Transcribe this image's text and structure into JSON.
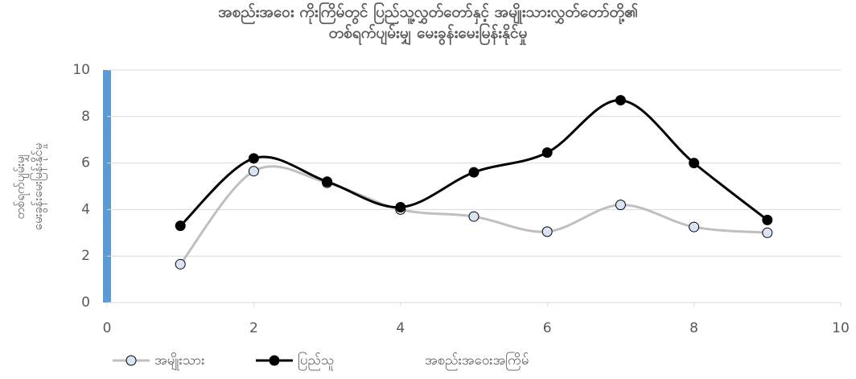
{
  "chart_data": {
    "type": "line",
    "title": "အစည်းအဝေး ကိုးကြိမ်တွင် ပြည်သူ့လွှတ်တော်နှင့် အမျိုးသားလွှတ်တော်တို့၏\nတစ်ရက်ပျမ်းမျှ မေးခွန်းမေးမြန်းနိုင်မှု",
    "ylabel": "တစ်ရက်ပျမ်းမျှ\nမေးခွန်းမေးမြန်းနိုင်မှု",
    "xlabel": "အစည်းအဝေးအကြိမ်",
    "x": [
      1,
      2,
      3,
      4,
      5,
      6,
      7,
      8,
      9
    ],
    "series": [
      {
        "name": "အမျိုးသား",
        "color": "#bfbfbf",
        "marker": "#dae3f3",
        "values": [
          1.65,
          5.65,
          5.15,
          4.0,
          3.7,
          3.05,
          4.2,
          3.25,
          3.0
        ]
      },
      {
        "name": "ပြည်သူ",
        "color": "#000000",
        "marker": "#000000",
        "values": [
          3.3,
          6.2,
          5.2,
          4.1,
          5.6,
          6.45,
          8.7,
          6.0,
          3.55
        ]
      }
    ],
    "xlim": [
      0,
      10
    ],
    "xticks": [
      0,
      2,
      4,
      6,
      8,
      10
    ],
    "ylim": [
      0,
      10
    ],
    "yticks": [
      0,
      2,
      4,
      6,
      8,
      10
    ],
    "grid": true
  }
}
